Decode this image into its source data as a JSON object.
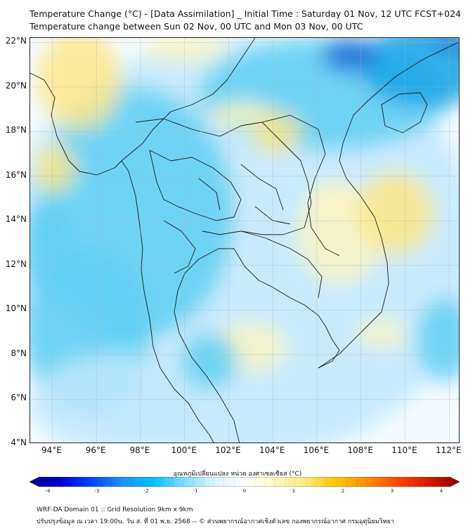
{
  "header": {
    "title_line1": "Temperature Change (°C) - [Data Assimilation] _ Initial Time : Saturday 01 Nov, 12 UTC FCST+024",
    "title_line2": "Temperature change between Sun 02 Nov, 00 UTC and Mon 03 Nov, 00 UTC"
  },
  "map": {
    "lon_range": [
      93,
      112.5
    ],
    "lat_range": [
      4,
      22.2
    ],
    "lat_ticks": [
      {
        "value": 22,
        "label": "22°N"
      },
      {
        "value": 20,
        "label": "20°N"
      },
      {
        "value": 18,
        "label": "18°N"
      },
      {
        "value": 16,
        "label": "16°N"
      },
      {
        "value": 14,
        "label": "14°N"
      },
      {
        "value": 12,
        "label": "12°N"
      },
      {
        "value": 10,
        "label": "10°N"
      },
      {
        "value": 8,
        "label": "8°N"
      },
      {
        "value": 6,
        "label": "6°N"
      },
      {
        "value": 4,
        "label": "4°N"
      }
    ],
    "lon_ticks": [
      {
        "value": 94,
        "label": "94°E"
      },
      {
        "value": 96,
        "label": "96°E"
      },
      {
        "value": 98,
        "label": "98°E"
      },
      {
        "value": 100,
        "label": "100°E"
      },
      {
        "value": 102,
        "label": "102°E"
      },
      {
        "value": 104,
        "label": "104°E"
      },
      {
        "value": 106,
        "label": "106°E"
      },
      {
        "value": 108,
        "label": "108°E"
      },
      {
        "value": 110,
        "label": "110°E"
      },
      {
        "value": 112,
        "label": "112°E"
      }
    ],
    "grid": true,
    "field_colors": {
      "background": "#f4fbff",
      "light_blue": "#bfe9fb",
      "blue": "#5fd0f5",
      "deep_blue": "#17a4e6",
      "dark_blue": "#1e6fd8",
      "light_yellow": "#fbf5c2",
      "yellow": "#fbe78a",
      "coast": "#1a1a1a"
    }
  },
  "colorbar": {
    "label": "อุณหภูมิเปลี่ยนแปลง หน่วย องศาเซลเซียส (°C)",
    "ticks": [
      "-4",
      "-3",
      "-2",
      "-1",
      "0",
      "1",
      "2",
      "3",
      "4"
    ],
    "colors": [
      "#00008b",
      "#0000cd",
      "#0044ff",
      "#1e90ff",
      "#00bfff",
      "#7fdcfb",
      "#d9f4fd",
      "#ffffff",
      "#fff9c4",
      "#ffe97a",
      "#ffc300",
      "#ff8c00",
      "#ff4500",
      "#d91a00",
      "#8b0000"
    ]
  },
  "footer": {
    "line1": "WRF-DA Domain 01 :: Grid Resolution 9km x 9km",
    "line2": "ปรับปรุงข้อมูล ณ เวลา 19:00น. วัน ส. ที่ 01 พ.ย. 2568 -- © ส่วนพยากรณ์อากาศเชิงตัวเลข กองพยากรณ์อากาศ กรมอุตุนิยมวิทยา"
  }
}
